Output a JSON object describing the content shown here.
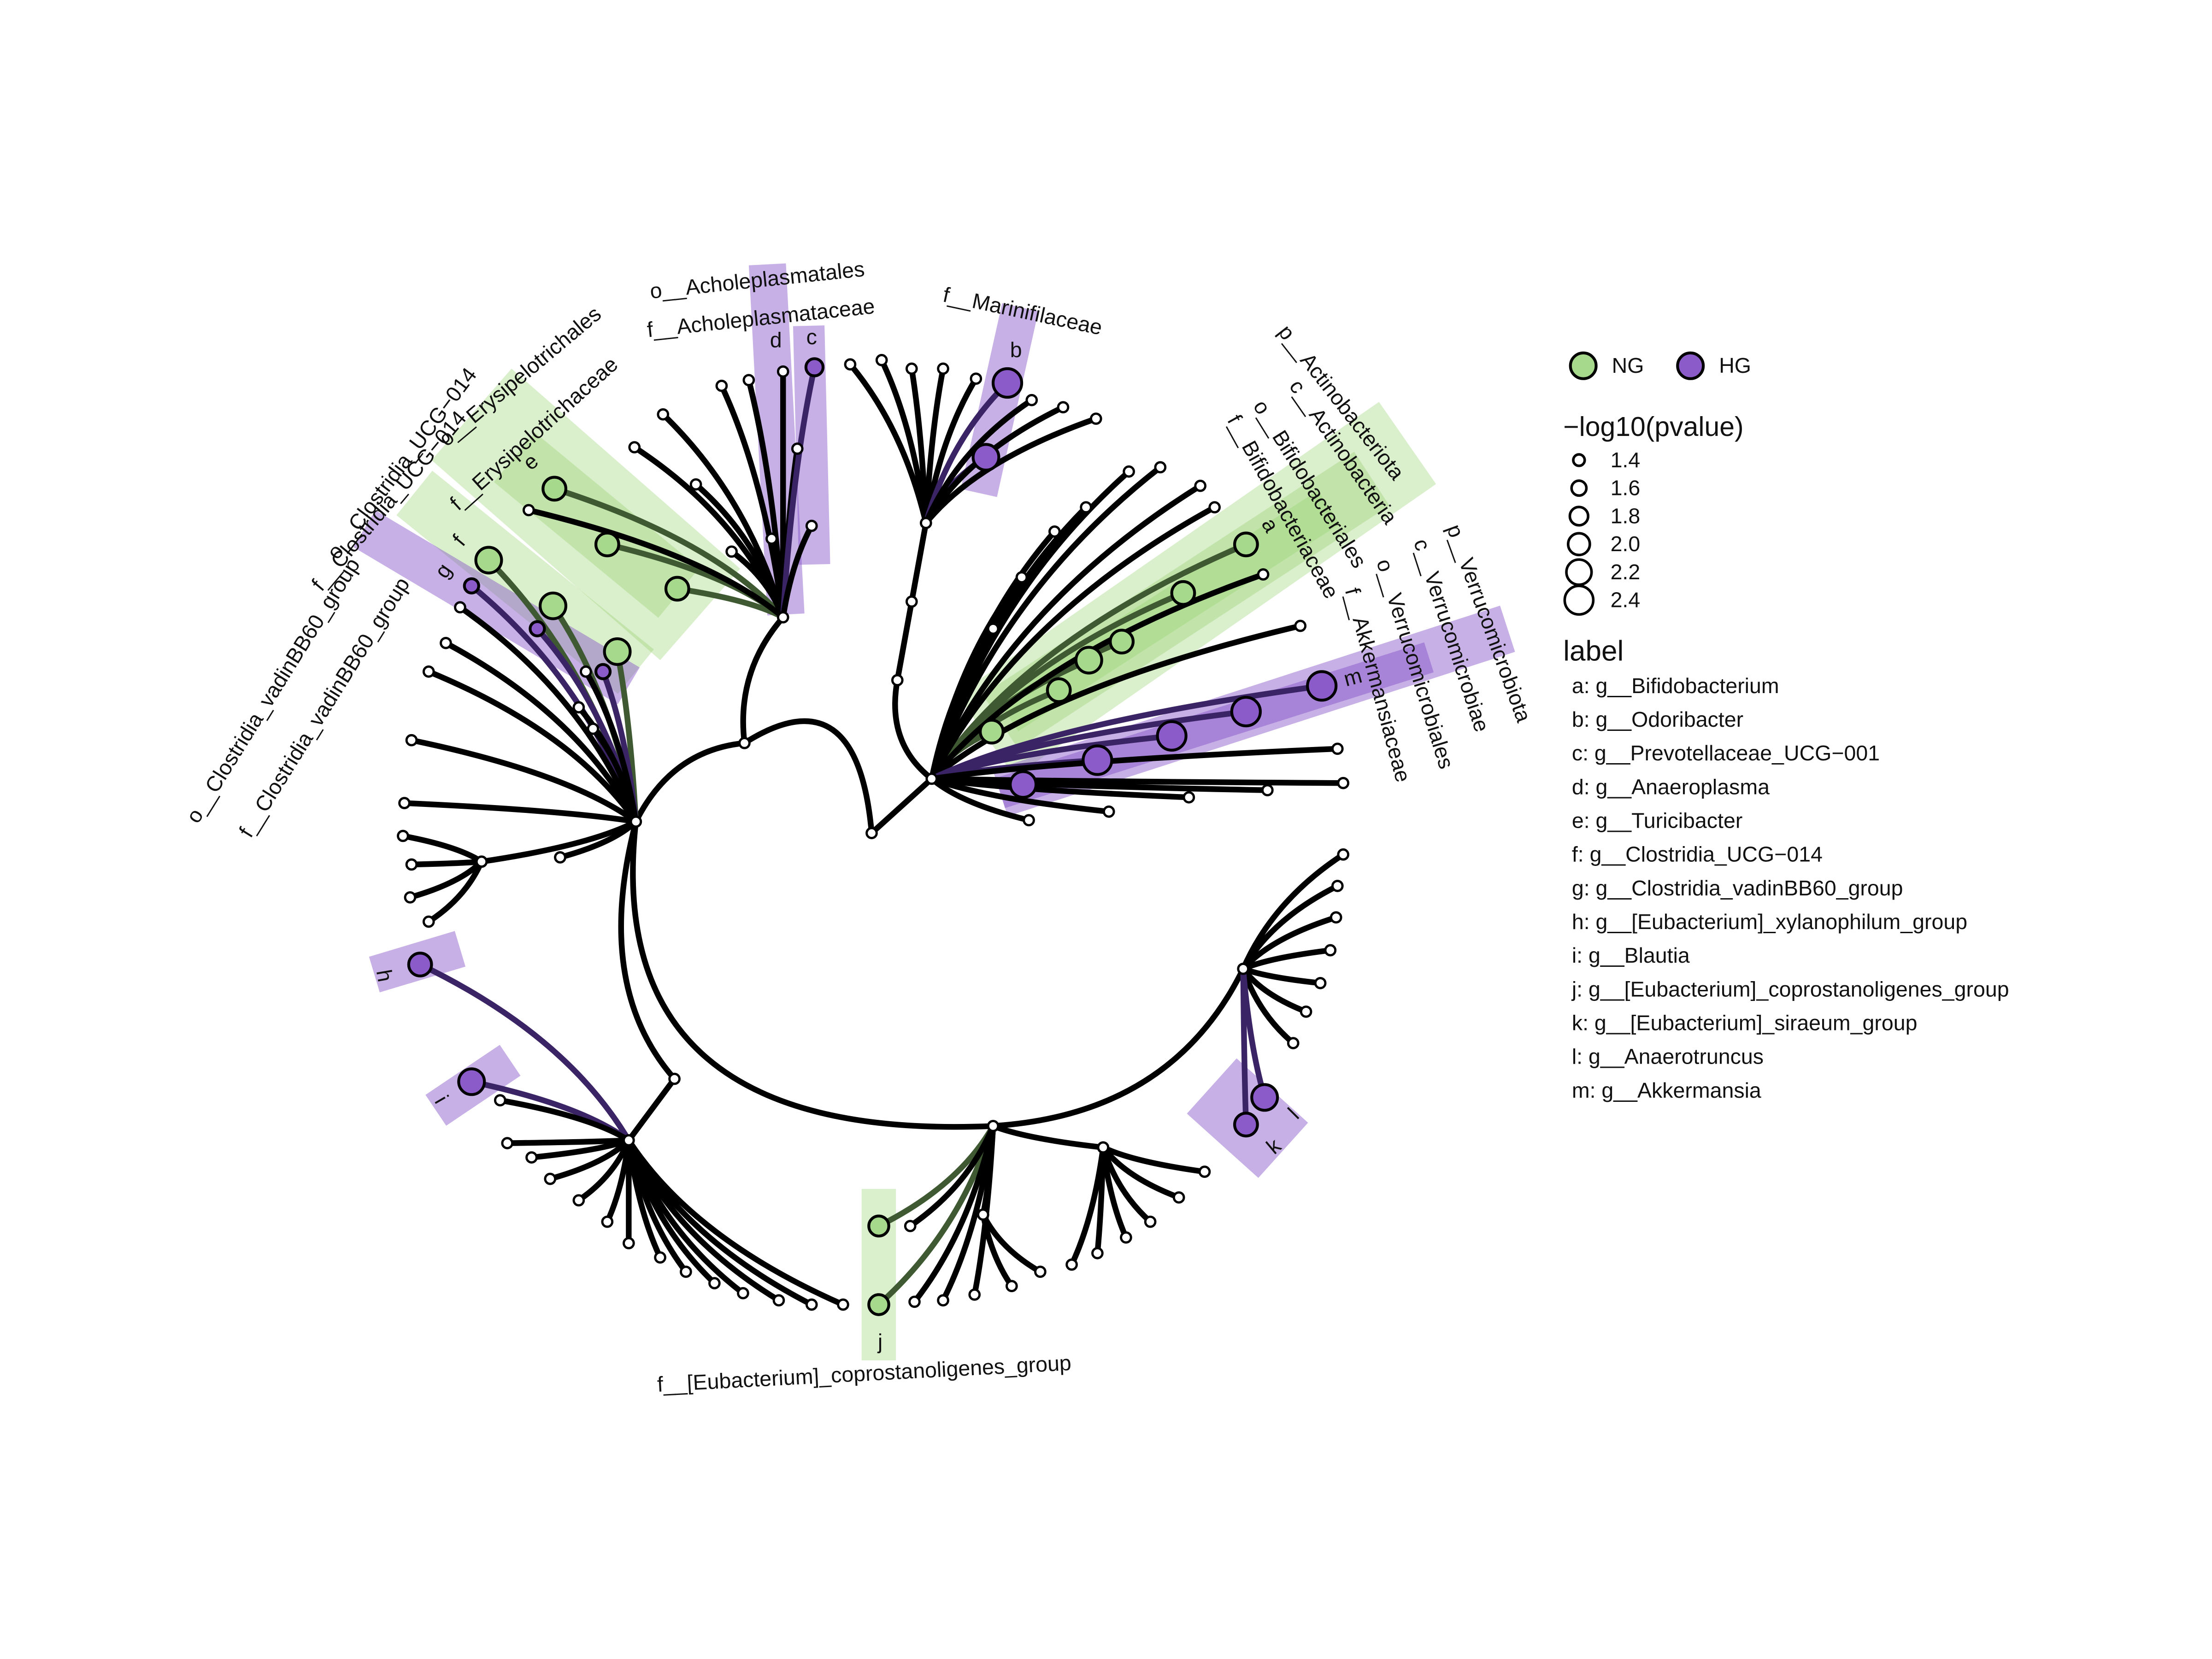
{
  "groups": [
    {
      "name": "NG",
      "color": "#a6d98c"
    },
    {
      "name": "HG",
      "color": "#8b5cc9"
    }
  ],
  "size_legend": {
    "title": "−log10(pvalue)",
    "values": [
      1.4,
      1.6,
      1.8,
      2.0,
      2.2,
      2.4
    ],
    "labels": [
      "1.4",
      "1.6",
      "1.8",
      "2.0",
      "2.2",
      "2.4"
    ]
  },
  "label_legend": {
    "title": "label",
    "items": [
      "a: g__Bifidobacterium",
      "b: g__Odoribacter",
      "c: g__Prevotellaceae_UCG−001",
      "d: g__Anaeroplasma",
      "e: g__Turicibacter",
      "f: g__Clostridia_UCG−014",
      "g: g__Clostridia_vadinBB60_group",
      "h: g__[Eubacterium]_xylanophilum_group",
      "i: g__Blautia",
      "j: g__[Eubacterium]_coprostanoligenes_group",
      "k: g__[Eubacterium]_siraeum_group",
      "l: g__Anaerotruncus",
      "m: g__Akkermansia"
    ]
  },
  "tree_letters": [
    "a",
    "b",
    "c",
    "d",
    "e",
    "f",
    "g",
    "h",
    "i",
    "j",
    "k",
    "l",
    "m"
  ],
  "clade_labels": [
    "o__Acholeplasmatales",
    "f__Acholeplasmataceae",
    "f__Marinifilaceae",
    "p__Actinobacteriota",
    "c__Actinobacteria",
    "o__Bifidobacteriales",
    "f__Bifidobacteriaceae",
    "p__Verrucomicrobiota",
    "c__Verrucomicrobiae",
    "o__Verrucomicrobiales",
    "f__Akkermansiaceae",
    "o__Erysipelotrichales",
    "f__Erysipelotrichaceae",
    "o__Clostridia_UCG−014",
    "f__Clostridia_UCG−014",
    "o__Clostridia_vadinBB60_group",
    "f__Clostridia_vadinBB60_group",
    "f__[Eubacterium]_coprostanoligenes_group"
  ]
}
